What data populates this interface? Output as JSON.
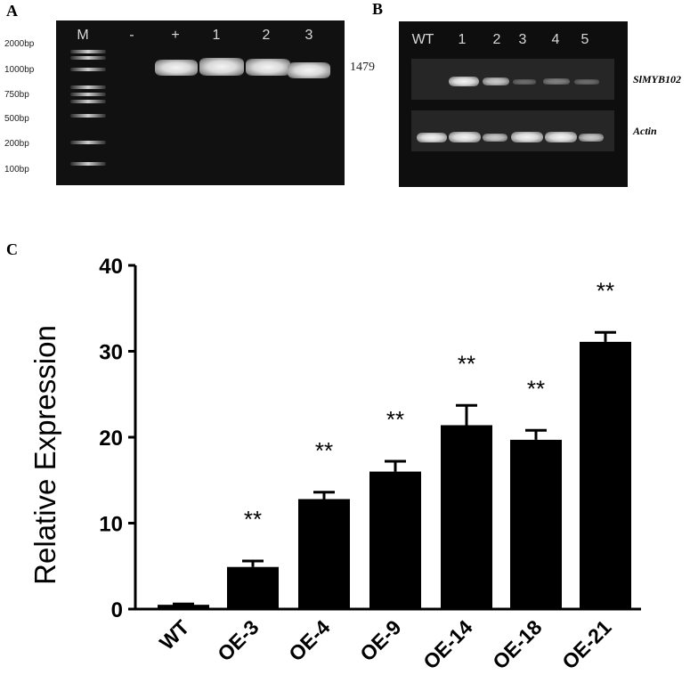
{
  "panels": {
    "a": "A",
    "b": "B",
    "c": "C"
  },
  "gel_a": {
    "lane_labels": [
      "M",
      "-",
      "+",
      "1",
      "2",
      "3"
    ],
    "marker_labels": [
      "2000bp",
      "1000bp",
      "750bp",
      "500bp",
      "200bp",
      "100bp"
    ],
    "band_size_label": "1479"
  },
  "gel_b": {
    "lane_labels": [
      "WT",
      "1",
      "2",
      "3",
      "4",
      "5"
    ],
    "gene_labels": [
      "SlMYB102",
      "Actin"
    ]
  },
  "chart_data": {
    "type": "bar",
    "categories": [
      "WT",
      "OE-3",
      "OE-4",
      "OE-9",
      "OE-14",
      "OE-18",
      "OE-21"
    ],
    "values": [
      0.5,
      4.9,
      12.8,
      16.0,
      21.4,
      19.7,
      31.1
    ],
    "errors": [
      0.1,
      0.7,
      0.8,
      1.2,
      2.3,
      1.1,
      1.1
    ],
    "significance": [
      "",
      "**",
      "**",
      "**",
      "**",
      "**",
      "**"
    ],
    "title": "",
    "xlabel": "",
    "ylabel": "Relative Expression",
    "ylim": [
      0,
      40
    ],
    "yticks": [
      0,
      10,
      20,
      30,
      40
    ],
    "bar_color": "#000000"
  }
}
